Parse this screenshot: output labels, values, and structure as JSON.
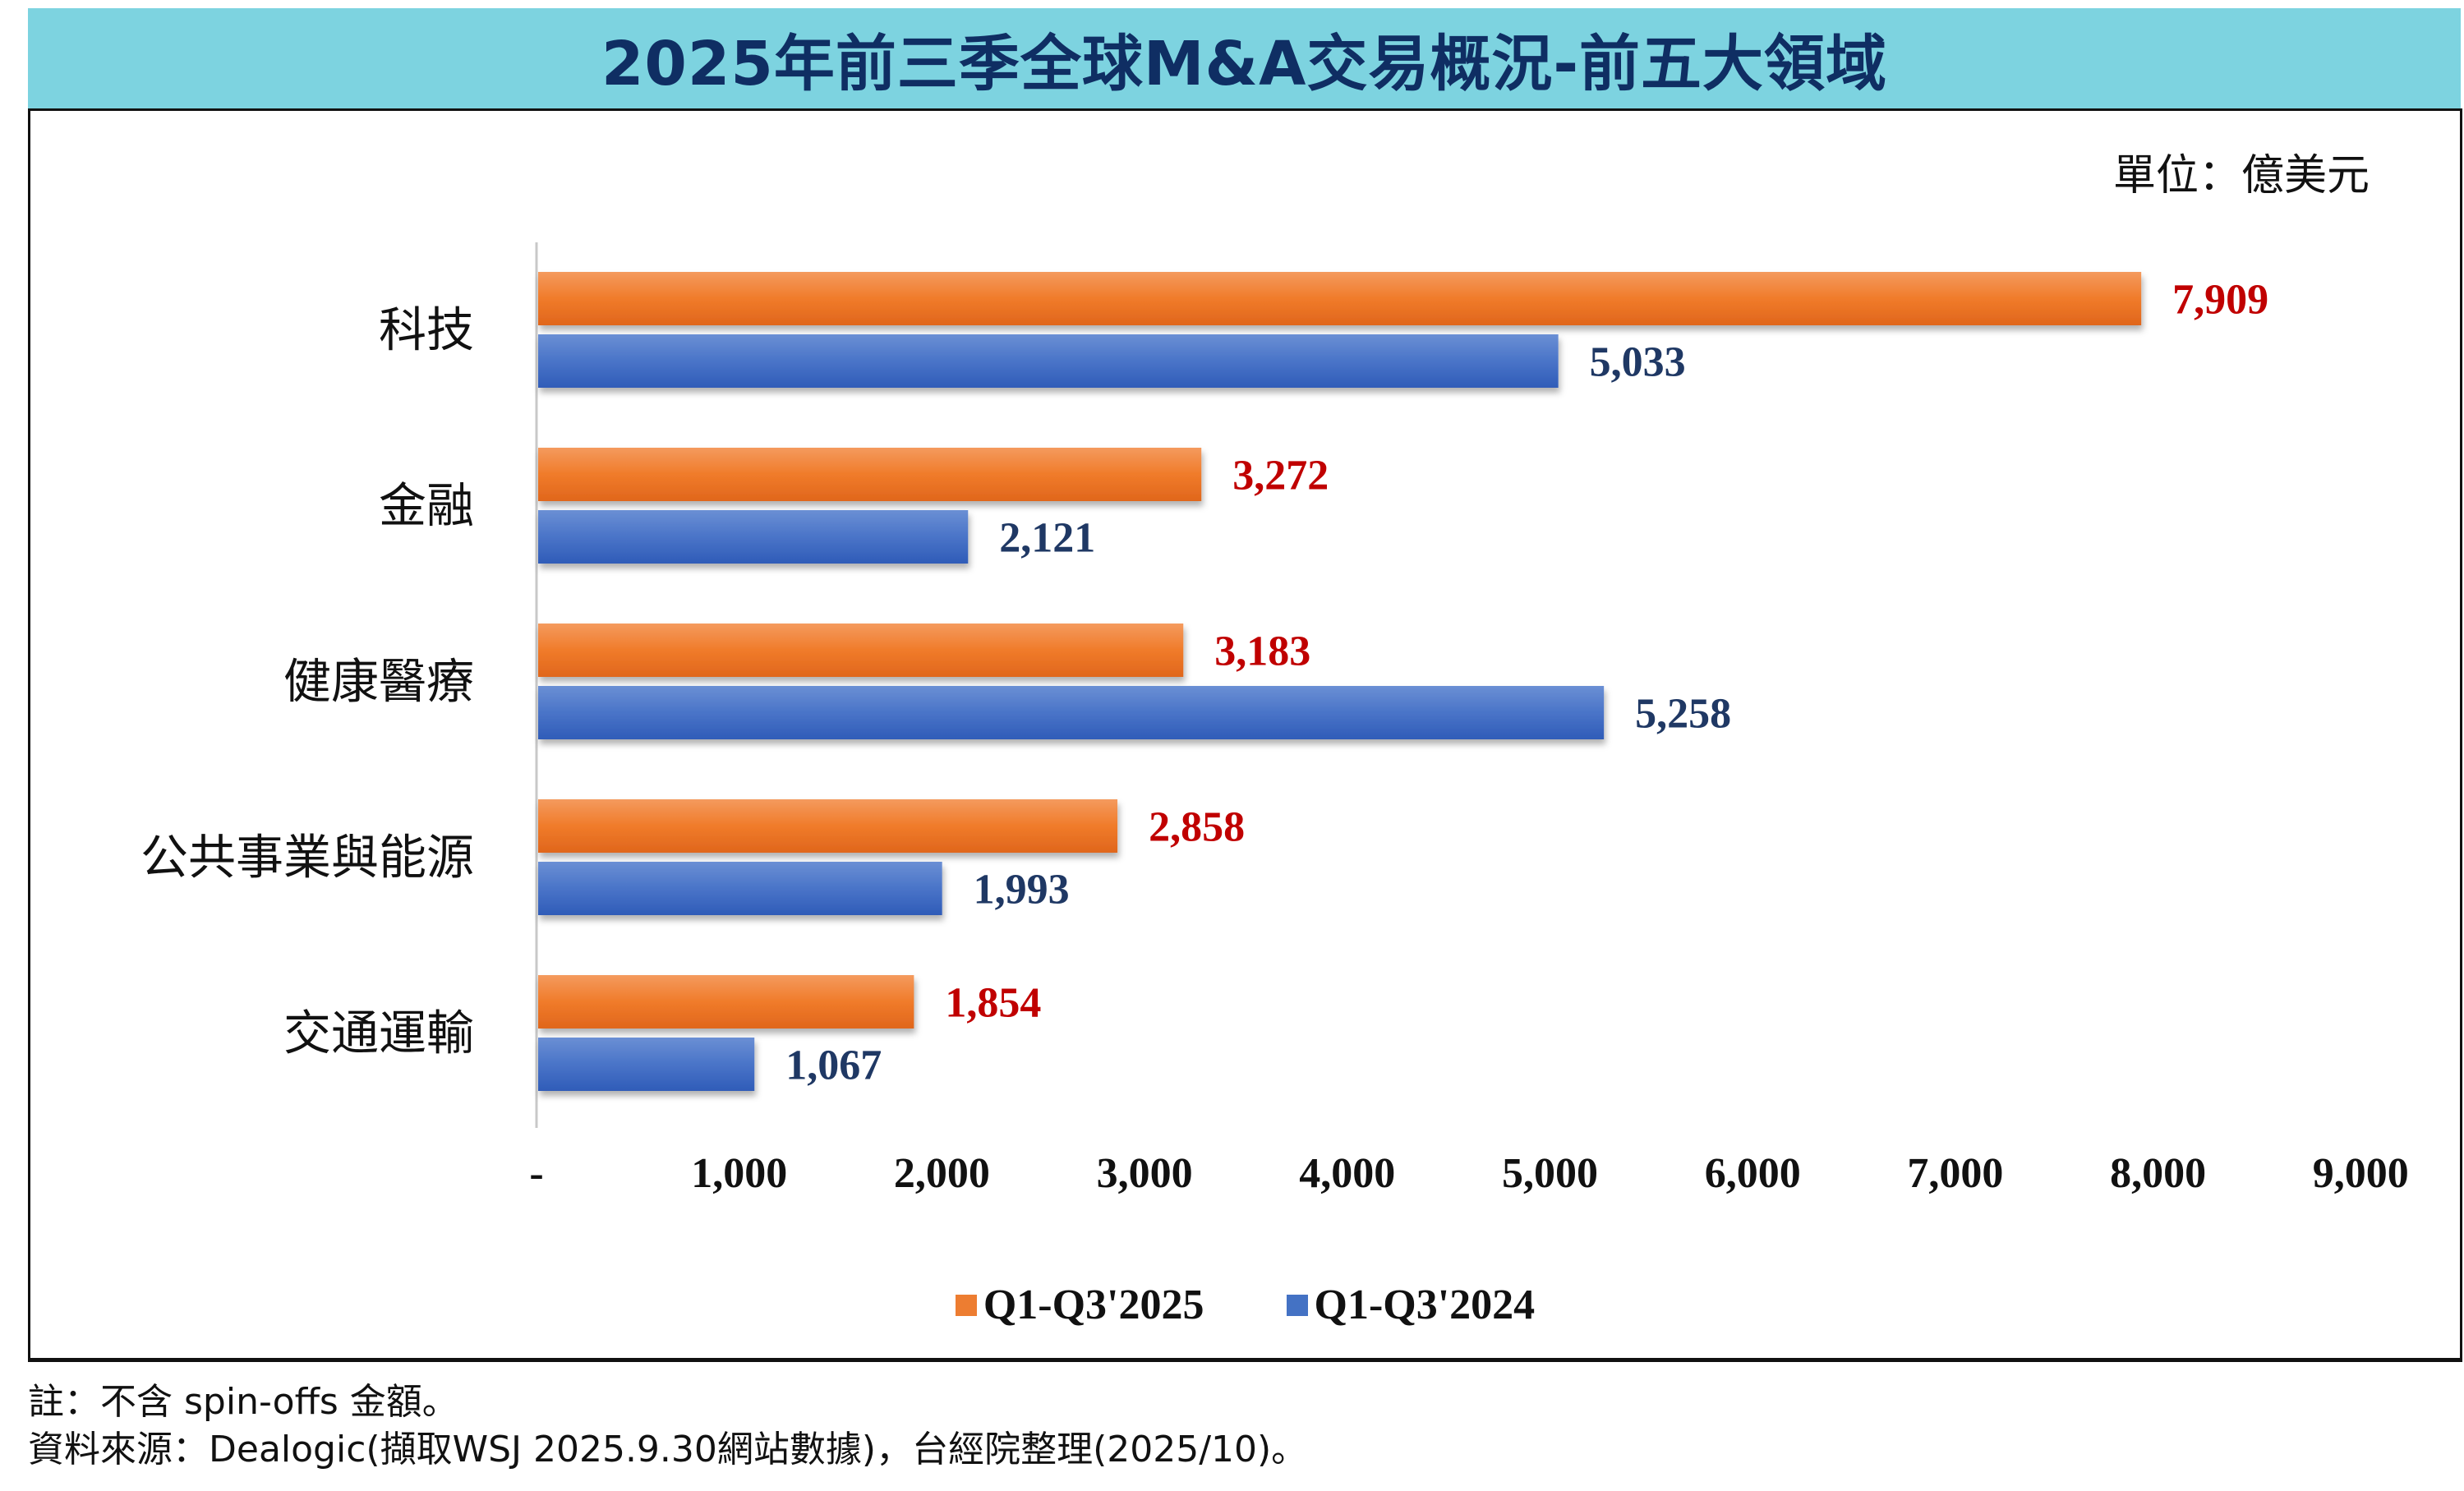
{
  "title": "2025年前三季全球M&A交易概況-前五大領域",
  "unit": "單位：億美元",
  "notes": [
    "註：不含 spin-offs 金額。",
    "資料來源：Dealogic(擷取WSJ 2025.9.30網站數據)，台經院整理(2025/10)。"
  ],
  "colors": {
    "orange": "#ed7d31",
    "blue": "#4472c4",
    "label_2025": "#c00000",
    "label_2024": "#1f3864"
  },
  "chart_data": {
    "type": "bar",
    "orientation": "horizontal",
    "title": "2025年前三季全球M&A交易概況-前五大領域",
    "categories": [
      "科技",
      "金融",
      "健康醫療",
      "公共事業與能源",
      "交通運輸"
    ],
    "series": [
      {
        "name": "Q1-Q3'2025",
        "values": [
          7909,
          3272,
          3183,
          2858,
          1854
        ],
        "labels": [
          "7,909",
          "3,272",
          "3,183",
          "2,858",
          "1,854"
        ]
      },
      {
        "name": "Q1-Q3'2024",
        "values": [
          5033,
          2121,
          5258,
          1993,
          1067
        ],
        "labels": [
          "5,033",
          "2,121",
          "5,258",
          "1,993",
          "1,067"
        ]
      }
    ],
    "xlim": [
      0,
      9000
    ],
    "xticks": [
      0,
      1000,
      2000,
      3000,
      4000,
      5000,
      6000,
      7000,
      8000,
      9000
    ],
    "xtick_labels": [
      "-",
      "1,000",
      "2,000",
      "3,000",
      "4,000",
      "5,000",
      "6,000",
      "7,000",
      "8,000",
      "9,000"
    ],
    "xlabel": "",
    "ylabel": "",
    "grid": false,
    "legend": "bottom"
  }
}
